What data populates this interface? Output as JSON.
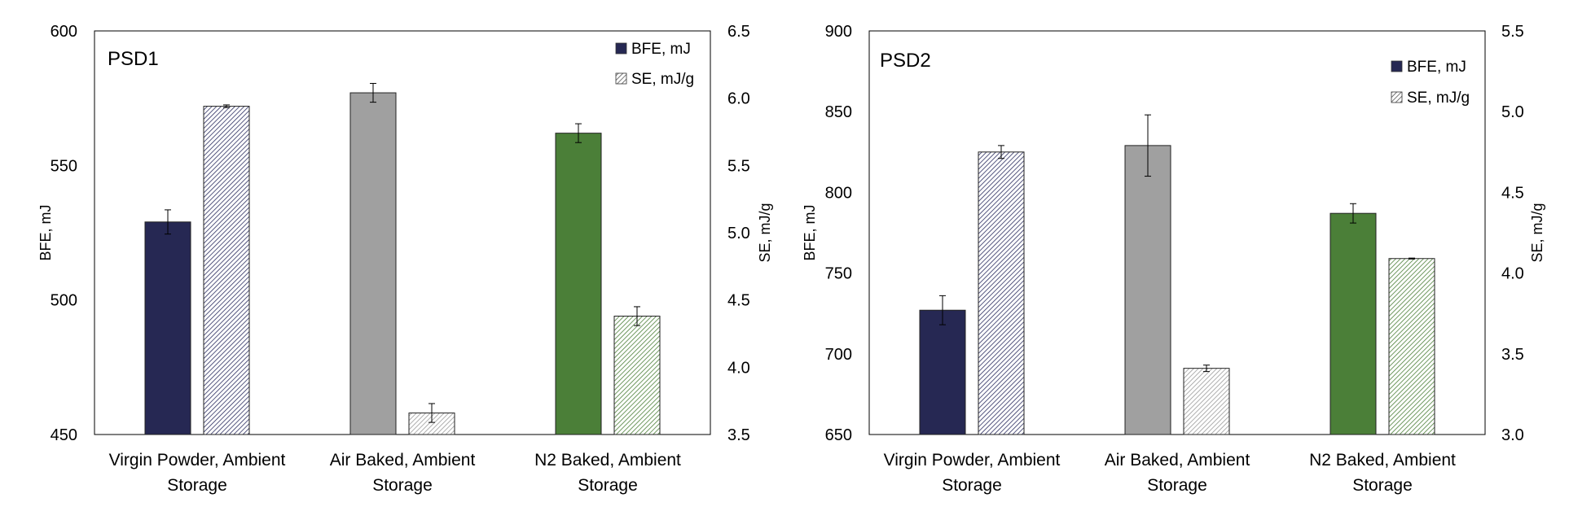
{
  "chart_data": [
    {
      "type": "bar",
      "title": "PSD1",
      "categories": [
        [
          "Virgin Powder, Ambient",
          "Storage"
        ],
        [
          "Air Baked, Ambient",
          "Storage"
        ],
        [
          "N2 Baked, Ambient",
          "Storage"
        ]
      ],
      "y_left": {
        "label": "BFE, mJ",
        "lim": [
          450,
          600
        ],
        "ticks": [
          "450",
          "500",
          "550",
          "600"
        ]
      },
      "y_right": {
        "label": "SE, mJ/g",
        "lim": [
          3.5,
          6.5
        ],
        "ticks": [
          "3.5",
          "4.0",
          "4.5",
          "5.0",
          "5.5",
          "6.0",
          "6.5"
        ]
      },
      "legend": {
        "placement": "top-right",
        "entries": [
          "BFE, mJ",
          "SE, mJ/g"
        ]
      },
      "grid": false,
      "series": [
        {
          "name": "BFE, mJ",
          "axis": "left",
          "values": [
            529,
            577,
            562
          ],
          "errors": [
            4.5,
            3.5,
            3.5
          ],
          "colors": [
            "#262853",
            "#a0a0a0",
            "#4b7f38"
          ],
          "pattern": false
        },
        {
          "name": "SE, mJ/g",
          "axis": "right",
          "values": [
            5.94,
            3.66,
            4.38
          ],
          "errors": [
            0.01,
            0.07,
            0.07
          ],
          "colors": [
            "#2b2d60",
            "#9a9a9a",
            "#4b7f38"
          ],
          "pattern": true
        }
      ]
    },
    {
      "type": "bar",
      "title": "PSD2",
      "categories": [
        [
          "Virgin Powder, Ambient",
          "Storage"
        ],
        [
          "Air Baked, Ambient",
          "Storage"
        ],
        [
          "N2 Baked, Ambient",
          "Storage"
        ]
      ],
      "y_left": {
        "label": "BFE, mJ",
        "lim": [
          650,
          900
        ],
        "ticks": [
          "650",
          "700",
          "750",
          "800",
          "850",
          "900"
        ]
      },
      "y_right": {
        "label": "SE, mJ/g",
        "lim": [
          3.0,
          5.5
        ],
        "ticks": [
          "3.0",
          "3.5",
          "4.0",
          "4.5",
          "5.0",
          "5.5"
        ]
      },
      "legend": {
        "placement": "top-right",
        "entries": [
          "BFE, mJ",
          "SE, mJ/g"
        ]
      },
      "grid": false,
      "series": [
        {
          "name": "BFE, mJ",
          "axis": "left",
          "values": [
            727,
            829,
            787
          ],
          "errors": [
            9,
            19,
            6
          ],
          "colors": [
            "#262853",
            "#a0a0a0",
            "#4b7f38"
          ],
          "pattern": false
        },
        {
          "name": "SE, mJ/g",
          "axis": "right",
          "values": [
            4.75,
            3.41,
            4.09
          ],
          "errors": [
            0.04,
            0.02,
            0.003
          ],
          "colors": [
            "#2b2d60",
            "#9a9a9a",
            "#4b7f38"
          ],
          "pattern": true
        }
      ]
    }
  ]
}
